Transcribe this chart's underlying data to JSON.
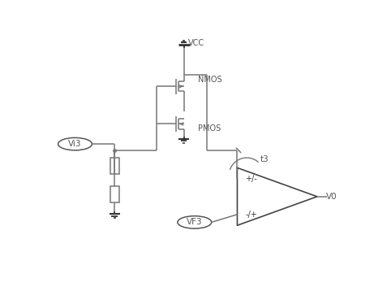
{
  "bg_color": "#ffffff",
  "line_color": "#777777",
  "dark_color": "#333333",
  "text_color": "#555555",
  "fig_width": 4.61,
  "fig_height": 3.53,
  "dpi": 100,
  "vcc_label": "VCC",
  "nmos_label": "NMOS",
  "pmos_label": "PMOS",
  "vi3_label": "Vi3",
  "vf3_label": "VF3",
  "vo_label": "V0",
  "t3_label": "t3",
  "plus_minus_top": "+/-",
  "minus_plus_bot": "-/+"
}
